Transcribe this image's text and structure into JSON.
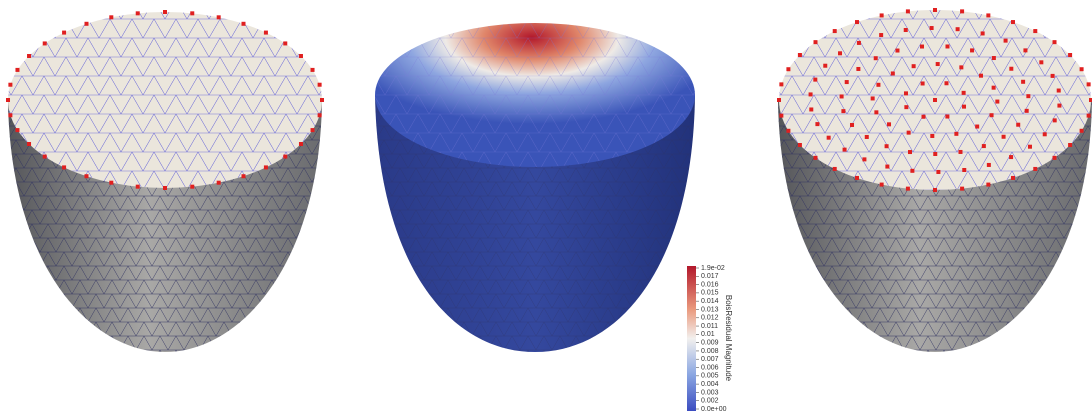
{
  "colorbar": {
    "title": "BoisResidual Magnitude",
    "labels": [
      "1.9e-02",
      "0.017",
      "0.016",
      "0.015",
      "0.014",
      "0.013",
      "0.012",
      "0.011",
      "0.01",
      "0.009",
      "0.008",
      "0.007",
      "0.006",
      "0.005",
      "0.004",
      "0.003",
      "0.002",
      "0.0e+00"
    ]
  }
}
